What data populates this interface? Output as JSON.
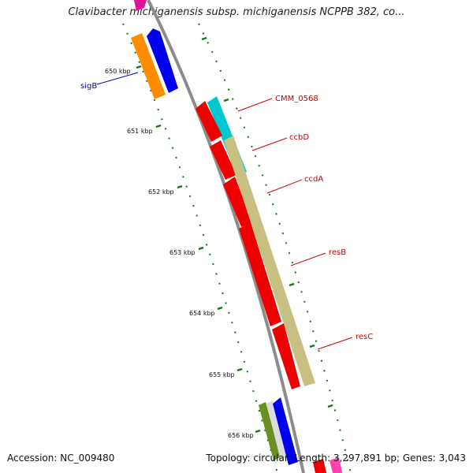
{
  "title": "Clavibacter michiganensis subsp. michiganensis NCPPB 382, co...",
  "footer": {
    "accession": "Accession: NC_009480",
    "stats": "Topology: circular; Length: 3,297,891 bp; Genes: 3,043"
  },
  "colors": {
    "backbone": "#8c8c8c",
    "tick": "#117a11",
    "label_red": "#cc0000",
    "label_blue": "#0000cc"
  },
  "ticks": [
    "650 kbp",
    "651 kbp",
    "652 kbp",
    "653 kbp",
    "654 kbp",
    "655 kbp",
    "656 kbp"
  ],
  "genes": [
    {
      "name": "sigB",
      "color": "#0000cc",
      "feature_color": "#ff8c00"
    },
    {
      "name": "CMM_0568",
      "color": "#cc0000",
      "feature_color": "#00c8d2"
    },
    {
      "name": "ccbD",
      "color": "#cc0000",
      "feature_color": "#ff0000"
    },
    {
      "name": "ccdA",
      "color": "#cc0000",
      "feature_color": "#ff0000"
    },
    {
      "name": "resB",
      "color": "#cc0000",
      "feature_color": "#ff0000"
    },
    {
      "name": "resC",
      "color": "#cc0000",
      "feature_color": "#ff0000"
    }
  ]
}
